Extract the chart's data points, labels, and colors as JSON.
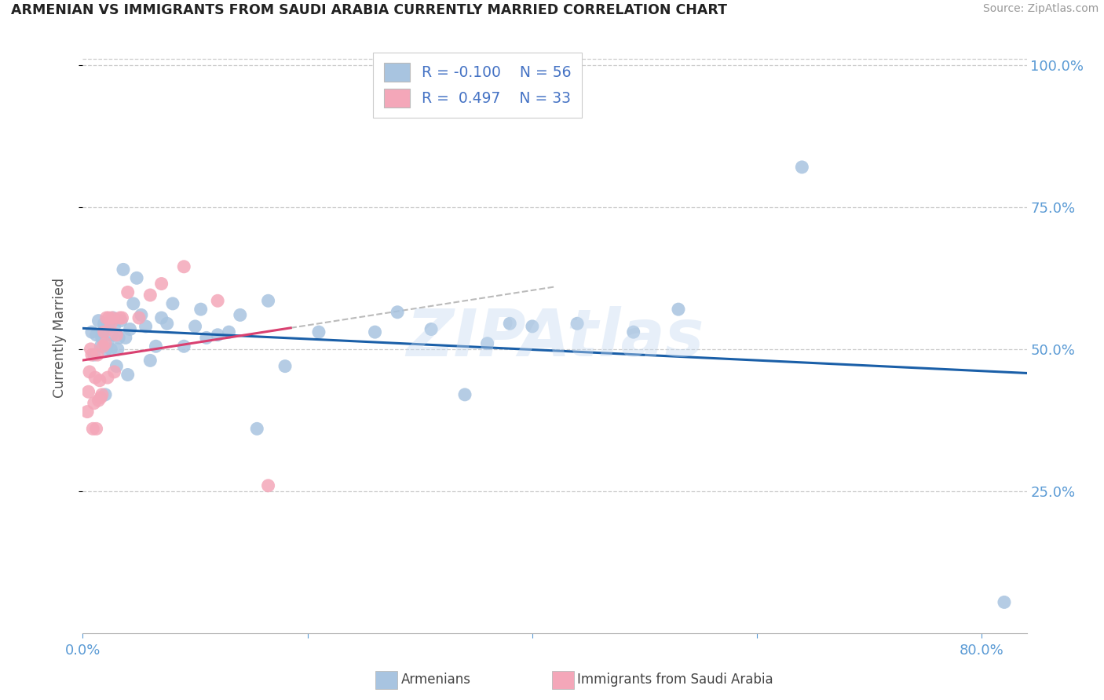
{
  "title": "ARMENIAN VS IMMIGRANTS FROM SAUDI ARABIA CURRENTLY MARRIED CORRELATION CHART",
  "source": "Source: ZipAtlas.com",
  "ylabel": "Currently Married",
  "x_min": 0.0,
  "x_max": 0.84,
  "y_min": 0.0,
  "y_max": 1.04,
  "y_ticks": [
    0.25,
    0.5,
    0.75,
    1.0
  ],
  "y_tick_labels": [
    "25.0%",
    "50.0%",
    "75.0%",
    "100.0%"
  ],
  "armenians_R": -0.1,
  "armenians_N": 56,
  "saudi_R": 0.497,
  "saudi_N": 33,
  "armenians_color": "#a8c4e0",
  "saudi_color": "#f4a7b9",
  "trend_armenians_color": "#1a5fa8",
  "trend_saudi_color": "#d94070",
  "watermark": "ZIPAtlas",
  "armenians_x": [
    0.008,
    0.01,
    0.012,
    0.014,
    0.016,
    0.017,
    0.018,
    0.019,
    0.02,
    0.021,
    0.022,
    0.023,
    0.025,
    0.026,
    0.027,
    0.028,
    0.03,
    0.031,
    0.032,
    0.034,
    0.036,
    0.038,
    0.04,
    0.042,
    0.045,
    0.048,
    0.052,
    0.056,
    0.06,
    0.065,
    0.07,
    0.075,
    0.08,
    0.09,
    0.1,
    0.105,
    0.11,
    0.12,
    0.13,
    0.14,
    0.155,
    0.165,
    0.18,
    0.21,
    0.26,
    0.28,
    0.31,
    0.34,
    0.36,
    0.38,
    0.4,
    0.44,
    0.49,
    0.53,
    0.64,
    0.82
  ],
  "armenians_y": [
    0.53,
    0.49,
    0.525,
    0.55,
    0.505,
    0.52,
    0.53,
    0.545,
    0.42,
    0.5,
    0.51,
    0.545,
    0.5,
    0.525,
    0.555,
    0.54,
    0.47,
    0.5,
    0.52,
    0.55,
    0.64,
    0.52,
    0.455,
    0.535,
    0.58,
    0.625,
    0.56,
    0.54,
    0.48,
    0.505,
    0.555,
    0.545,
    0.58,
    0.505,
    0.54,
    0.57,
    0.52,
    0.525,
    0.53,
    0.56,
    0.36,
    0.585,
    0.47,
    0.53,
    0.53,
    0.565,
    0.535,
    0.42,
    0.51,
    0.545,
    0.54,
    0.545,
    0.53,
    0.57,
    0.82,
    0.055
  ],
  "saudi_x": [
    0.004,
    0.005,
    0.006,
    0.007,
    0.008,
    0.009,
    0.01,
    0.011,
    0.012,
    0.013,
    0.014,
    0.015,
    0.016,
    0.017,
    0.018,
    0.019,
    0.02,
    0.021,
    0.022,
    0.023,
    0.025,
    0.026,
    0.028,
    0.03,
    0.033,
    0.035,
    0.04,
    0.05,
    0.06,
    0.07,
    0.09,
    0.12,
    0.165
  ],
  "saudi_y": [
    0.39,
    0.425,
    0.46,
    0.5,
    0.49,
    0.36,
    0.405,
    0.45,
    0.36,
    0.49,
    0.41,
    0.445,
    0.415,
    0.42,
    0.505,
    0.53,
    0.51,
    0.555,
    0.45,
    0.555,
    0.545,
    0.555,
    0.46,
    0.525,
    0.555,
    0.555,
    0.6,
    0.555,
    0.595,
    0.615,
    0.645,
    0.585,
    0.26
  ],
  "trend_saudi_dash_start": 0.185,
  "trend_saudi_dash_end": 0.42
}
